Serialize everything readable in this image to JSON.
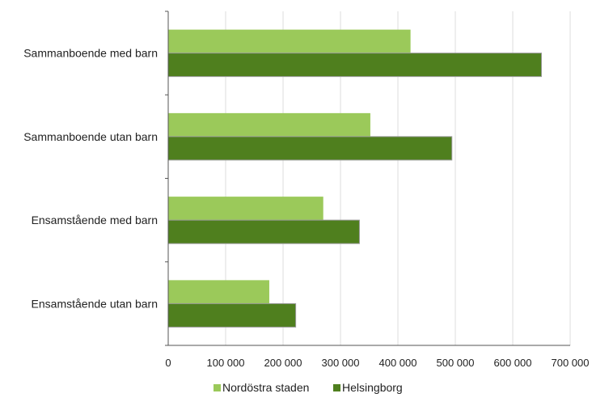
{
  "chart_data": {
    "type": "bar",
    "orientation": "horizontal",
    "title": "",
    "xlabel": "",
    "ylabel": "",
    "categories": [
      "Sammanboende med barn",
      "Sammanboende utan barn",
      "Ensamstående med barn",
      "Ensamstående utan barn"
    ],
    "series": [
      {
        "name": "Nordöstra staden",
        "color": "#9bc95a",
        "values": [
          422000,
          352000,
          270000,
          176000
        ]
      },
      {
        "name": "Helsingborg",
        "color": "#4f7f1e",
        "values": [
          650000,
          494000,
          333000,
          222000
        ]
      }
    ],
    "xlim": [
      0,
      700000
    ],
    "xticks": [
      0,
      100000,
      200000,
      300000,
      400000,
      500000,
      600000,
      700000
    ],
    "xtick_labels": [
      "0",
      "100 000",
      "200 000",
      "300 000",
      "400 000",
      "500 000",
      "600 000",
      "700 000"
    ],
    "grid": "vertical",
    "legend_position": "bottom-center"
  }
}
